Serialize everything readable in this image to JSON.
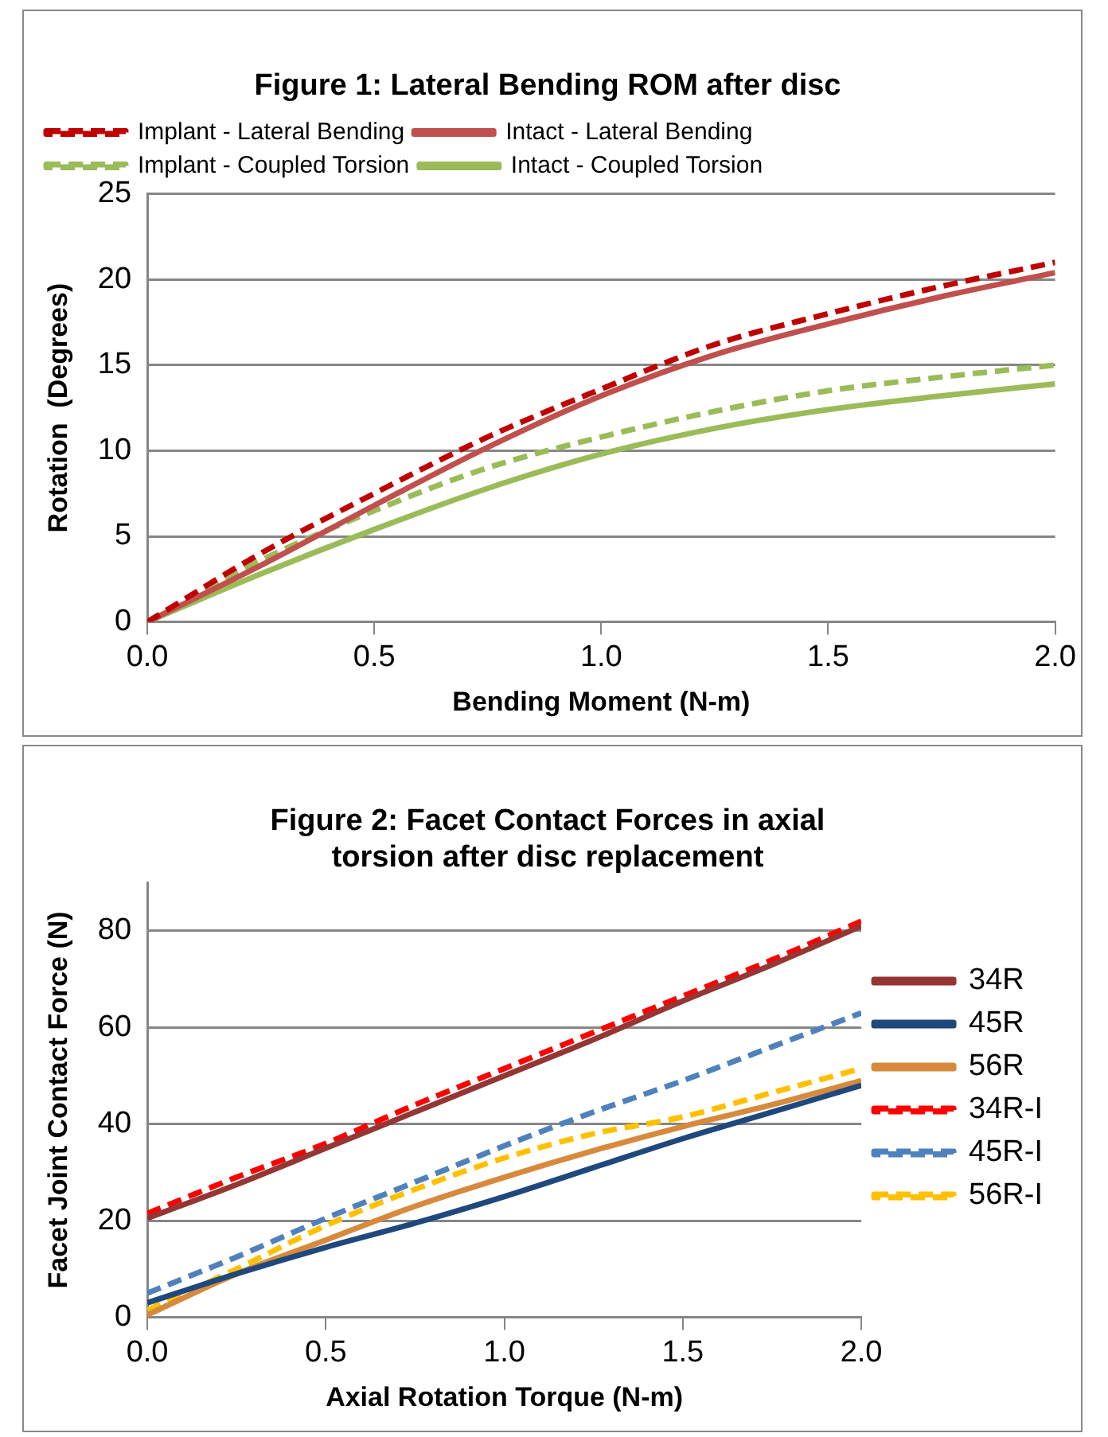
{
  "chart_data": [
    {
      "type": "line",
      "title": "Figure 1: Lateral Bending ROM after disc",
      "xlabel": "Bending Moment (N-m)",
      "ylabel": "Rotation  (Degrees)",
      "x": [
        0,
        0.25,
        0.5,
        0.75,
        1.0,
        1.25,
        1.5,
        1.75,
        2.0
      ],
      "series": [
        {
          "name": "Implant - Lateral Bending",
          "color": "#c00000",
          "line_style": "dashed",
          "values": [
            0,
            4,
            7.5,
            10.8,
            13.6,
            16.2,
            18,
            19.6,
            21
          ]
        },
        {
          "name": "Intact - Lateral Bending",
          "color": "#c0504d",
          "line_style": "solid",
          "values": [
            0,
            3.3,
            6.8,
            10.2,
            13.2,
            15.6,
            17.4,
            19,
            20.4
          ]
        },
        {
          "name": "Implant - Coupled Torsion",
          "color": "#9bbb59",
          "line_style": "dashed",
          "values": [
            0,
            3.6,
            6.5,
            9,
            10.8,
            12.3,
            13.5,
            14.3,
            15
          ]
        },
        {
          "name": "Intact - Coupled Torsion",
          "color": "#9bbb59",
          "line_style": "solid",
          "values": [
            0,
            2.8,
            5.4,
            7.8,
            9.8,
            11.3,
            12.4,
            13.2,
            13.9
          ]
        }
      ],
      "xlim": [
        0,
        2
      ],
      "xticks": [
        {
          "value": 0,
          "label": "0.0"
        },
        {
          "value": 0.5,
          "label": "0.5"
        },
        {
          "value": 1,
          "label": "1.0"
        },
        {
          "value": 1.5,
          "label": "1.5"
        },
        {
          "value": 2,
          "label": "2.0"
        }
      ],
      "ylim": [
        0,
        25
      ],
      "yticks": [
        0,
        5,
        10,
        15,
        20,
        25
      ],
      "grid": "y",
      "legend": "top left",
      "marker": "none"
    },
    {
      "type": "line",
      "title": "Figure 2: Facet Contact Forces in axial torsion after disc replacement",
      "xlabel": "Axial Rotation Torque (N-m)",
      "ylabel": "Facet Joint Contact Force (N)",
      "x": [
        0,
        0.25,
        0.5,
        0.75,
        1.0,
        1.25,
        1.5,
        1.75,
        2.0
      ],
      "series": [
        {
          "name": "34R",
          "color": "#943634",
          "line_style": "solid",
          "values": [
            20.5,
            27.5,
            35,
            42.5,
            50,
            57.5,
            65.5,
            73,
            81
          ]
        },
        {
          "name": "45R",
          "color": "#1f497d",
          "line_style": "solid",
          "values": [
            3,
            9,
            14.5,
            19.5,
            25,
            31,
            37,
            42.5,
            48
          ]
        },
        {
          "name": "56R",
          "color": "#d78a3c",
          "line_style": "solid",
          "values": [
            0.5,
            9,
            16,
            23,
            29,
            34.5,
            39.5,
            44,
            49
          ]
        },
        {
          "name": "34R-I",
          "color": "#ff0000",
          "line_style": "dashed",
          "values": [
            21.5,
            29,
            36,
            44,
            51.5,
            59,
            66.5,
            74,
            82
          ]
        },
        {
          "name": "45R-I",
          "color": "#4f81bd",
          "line_style": "dashed",
          "values": [
            5,
            12.5,
            20.5,
            28,
            35.5,
            42.5,
            49,
            56,
            63
          ]
        },
        {
          "name": "56R-I",
          "color": "#ffc000",
          "line_style": "dashed",
          "values": [
            1.5,
            10,
            19,
            26.5,
            33,
            38,
            41.5,
            46.5,
            51.5
          ]
        }
      ],
      "xlim": [
        0,
        2
      ],
      "xticks": [
        {
          "value": 0,
          "label": "0.0"
        },
        {
          "value": 0.5,
          "label": "0.5"
        },
        {
          "value": 1,
          "label": "1.0"
        },
        {
          "value": 1.5,
          "label": "1.5"
        },
        {
          "value": 2,
          "label": "2.0"
        }
      ],
      "ylim": [
        0,
        90
      ],
      "yticks": [
        0,
        20,
        40,
        60,
        80
      ],
      "grid": "y",
      "legend": "right",
      "marker": "none"
    }
  ]
}
